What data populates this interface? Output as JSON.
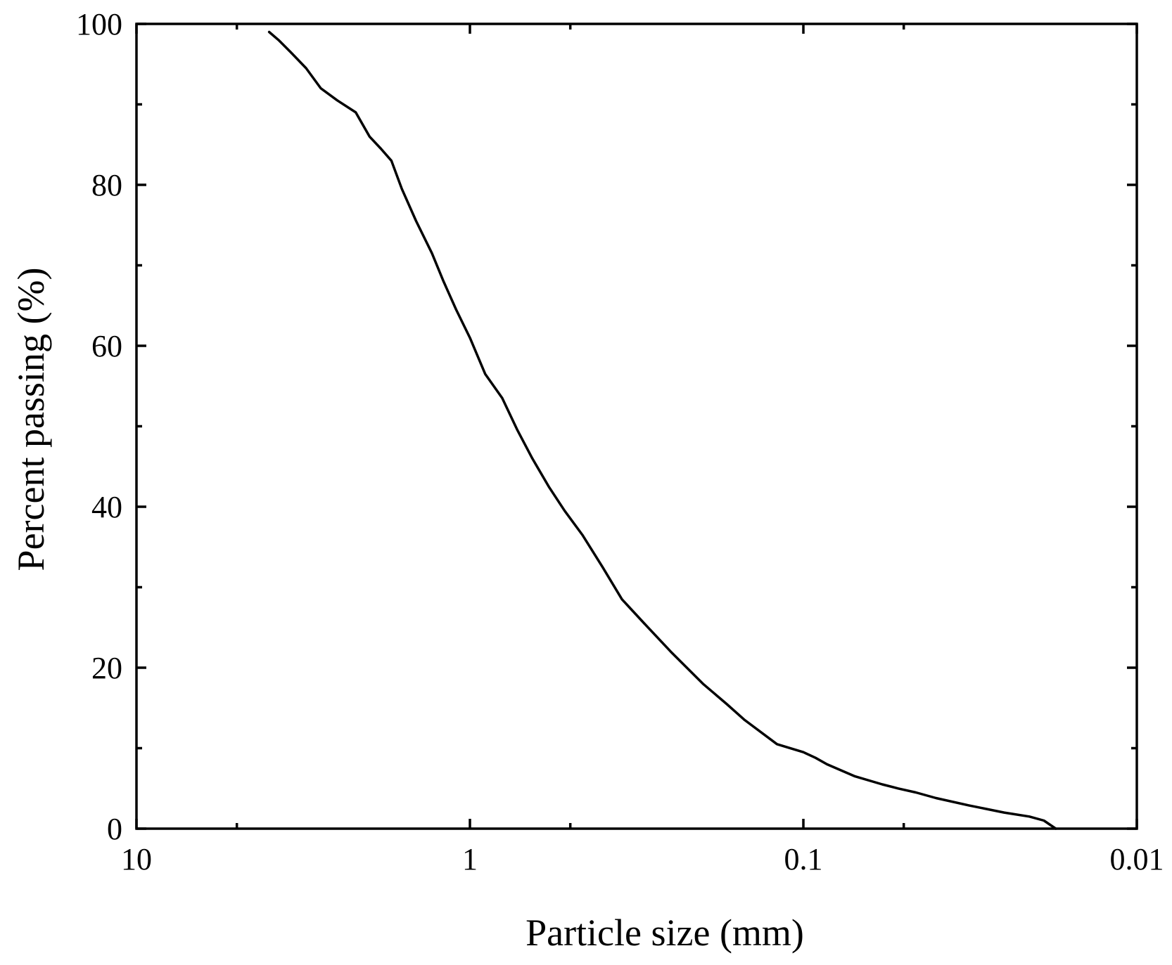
{
  "chart_data": {
    "type": "line",
    "title": "",
    "xlabel": "Particle size (mm)",
    "ylabel": "Percent passing (%)",
    "x_scale": "log",
    "x_reversed": true,
    "xlim": [
      10,
      0.01
    ],
    "ylim": [
      0,
      100
    ],
    "x_ticks": [
      10,
      1,
      0.1,
      0.01
    ],
    "x_tick_labels": [
      "10",
      "1",
      "0.1",
      "0.01"
    ],
    "y_ticks": [
      0,
      20,
      40,
      60,
      80,
      100
    ],
    "y_tick_labels": [
      "0",
      "20",
      "40",
      "60",
      "80",
      "100"
    ],
    "grid": false,
    "line_color": "#000000",
    "series": [
      {
        "x": [
          4.0,
          3.75,
          3.45,
          3.1,
          2.8,
          2.5,
          2.2,
          2.0,
          1.85,
          1.72,
          1.6,
          1.45,
          1.3,
          1.2,
          1.1,
          1.0,
          0.9,
          0.8,
          0.72,
          0.65,
          0.58,
          0.52,
          0.46,
          0.4,
          0.35,
          0.3,
          0.25,
          0.2,
          0.17,
          0.15,
          0.12,
          0.1,
          0.092,
          0.085,
          0.07,
          0.058,
          0.052,
          0.046,
          0.04,
          0.032,
          0.025,
          0.021,
          0.019,
          0.0175
        ],
        "y": [
          99,
          98,
          96.5,
          94.5,
          92,
          90.5,
          89,
          86,
          84.5,
          83,
          79.5,
          75.5,
          71.5,
          68,
          64.5,
          61,
          56.5,
          53.5,
          49.5,
          46,
          42.5,
          39.5,
          36.5,
          32.5,
          28.5,
          25.5,
          22,
          18,
          15.5,
          13.5,
          10.5,
          9.5,
          8.8,
          8.0,
          6.5,
          5.5,
          5.0,
          4.5,
          3.8,
          2.9,
          2.0,
          1.5,
          1.0,
          0.0
        ]
      }
    ]
  }
}
